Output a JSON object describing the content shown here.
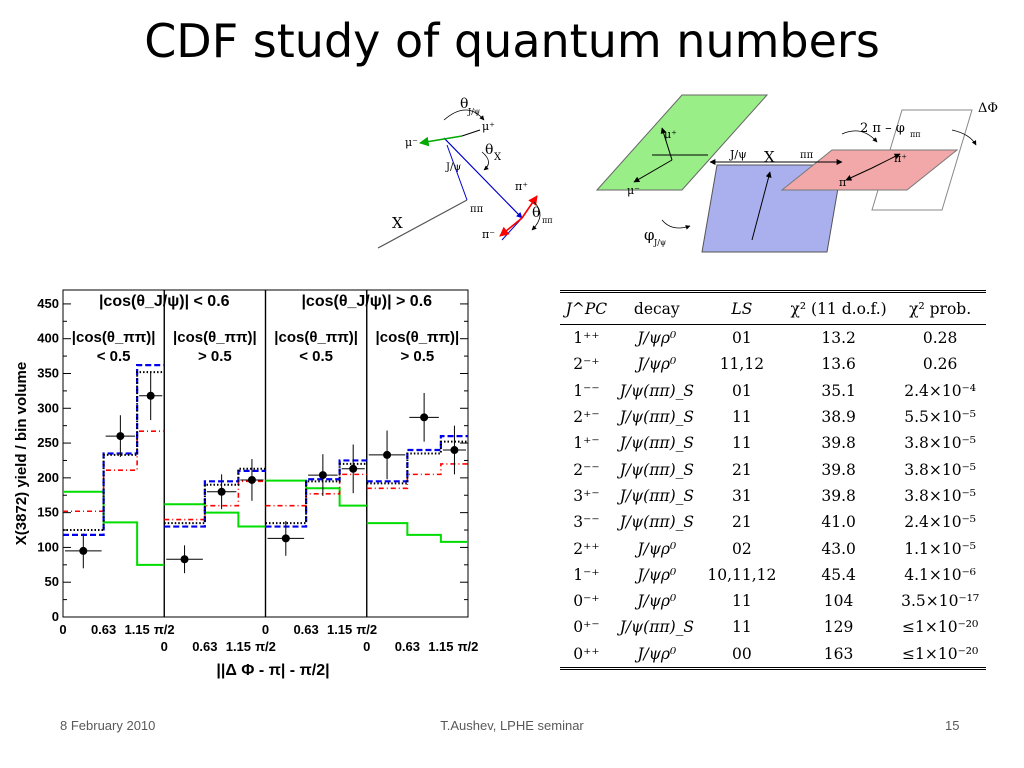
{
  "slide": {
    "title": "CDF study of quantum numbers",
    "footer_date": "8 February 2010",
    "footer_center": "T.Aushev, LPHE seminar",
    "page_number": "15"
  },
  "diagram_left": {
    "x_label": "X",
    "jpsi_label": "J/ψ",
    "mu_minus": "μ⁻",
    "mu_plus": "μ⁺",
    "theta_jpsi": "θ",
    "theta_jpsi_sub": "J/ψ",
    "theta_x": "θ",
    "theta_x_sub": "X",
    "pipi_label": "ππ",
    "pi_plus": "π⁺",
    "pi_minus": "π⁻",
    "theta_pipi": "θ",
    "theta_pipi_sub": "ππ"
  },
  "diagram_right": {
    "mu_plus": "μ⁺",
    "mu_minus": "μ⁻",
    "jpsi_label": "J/ψ",
    "x_label": "X",
    "pipi_label": "ππ",
    "pi_plus": "π⁺",
    "pi_minus": "π⁻",
    "two_pi_minus_phi": "2 π – φ",
    "two_pi_minus_phi_sub": "ππ",
    "delta_phi": "ΔΦ",
    "phi_jpsi": "φ",
    "phi_jpsi_sub": "J/ψ"
  },
  "chart_data": {
    "type": "histogram",
    "ylabel": "X(3872) yield / bin volume",
    "xlabel": "||Δ Φ - π| - π/2|",
    "ylim": [
      0,
      470
    ],
    "yticks": [
      0,
      50,
      100,
      150,
      200,
      250,
      300,
      350,
      400,
      450
    ],
    "x_ticks_top": [
      "0",
      "0.63",
      "1.15",
      "π/2",
      "0",
      "0.63",
      "1.15",
      "π/2"
    ],
    "x_ticks_bottom": [
      "0",
      "0.63",
      "1.15",
      "π/2",
      "0",
      "0.63",
      "1.15",
      "π/2"
    ],
    "bin_edges_per_panel": [
      0,
      0.63,
      1.15,
      1.5708
    ],
    "panel_headers": [
      "|cos(θ_J/ψ)| < 0.6",
      "|cos(θ_J/ψ)| > 0.6"
    ],
    "panels": [
      {
        "line1": "|cos(θ_ππ)|",
        "line2": "< 0.5"
      },
      {
        "line1": "|cos(θ_ππ)|",
        "line2": "> 0.5"
      },
      {
        "line1": "|cos(θ_ππ)|",
        "line2": "< 0.5"
      },
      {
        "line1": "|cos(θ_ππ)|",
        "line2": "> 0.5"
      }
    ],
    "data_points": [
      95,
      260,
      318,
      83,
      180,
      197,
      113,
      204,
      213,
      233,
      287,
      240
    ],
    "data_errors": [
      25,
      30,
      35,
      20,
      25,
      30,
      25,
      30,
      35,
      35,
      35,
      35
    ],
    "series": [
      {
        "style": "green-solid",
        "color": "#00dd00",
        "values": [
          180,
          136,
          75,
          162,
          150,
          130,
          196,
          185,
          160,
          135,
          118,
          108
        ]
      },
      {
        "style": "red-dashdot",
        "color": "#ff0000",
        "values": [
          152,
          211,
          267,
          140,
          160,
          195,
          160,
          177,
          205,
          185,
          205,
          220
        ]
      },
      {
        "style": "blue-dashed",
        "color": "#0000ee",
        "values": [
          118,
          235,
          362,
          130,
          195,
          210,
          130,
          198,
          225,
          195,
          240,
          260
        ]
      },
      {
        "style": "black-dotted",
        "color": "#000000",
        "values": [
          125,
          233,
          352,
          135,
          190,
          213,
          135,
          195,
          220,
          192,
          235,
          252
        ]
      }
    ]
  },
  "table": {
    "headers": [
      "J^PC",
      "decay",
      "LS",
      "χ² (11 d.o.f.)",
      "χ² prob."
    ],
    "rows": [
      [
        "1⁺⁺",
        "J/ψρ⁰",
        "01",
        "13.2",
        "0.28"
      ],
      [
        "2⁻⁺",
        "J/ψρ⁰",
        "11,12",
        "13.6",
        "0.26"
      ],
      [
        "1⁻⁻",
        "J/ψ(ππ)_S",
        "01",
        "35.1",
        "2.4×10⁻⁴"
      ],
      [
        "2⁺⁻",
        "J/ψ(ππ)_S",
        "11",
        "38.9",
        "5.5×10⁻⁵"
      ],
      [
        "1⁺⁻",
        "J/ψ(ππ)_S",
        "11",
        "39.8",
        "3.8×10⁻⁵"
      ],
      [
        "2⁻⁻",
        "J/ψ(ππ)_S",
        "21",
        "39.8",
        "3.8×10⁻⁵"
      ],
      [
        "3⁺⁻",
        "J/ψ(ππ)_S",
        "31",
        "39.8",
        "3.8×10⁻⁵"
      ],
      [
        "3⁻⁻",
        "J/ψ(ππ)_S",
        "21",
        "41.0",
        "2.4×10⁻⁵"
      ],
      [
        "2⁺⁺",
        "J/ψρ⁰",
        "02",
        "43.0",
        "1.1×10⁻⁵"
      ],
      [
        "1⁻⁺",
        "J/ψρ⁰",
        "10,11,12",
        "45.4",
        "4.1×10⁻⁶"
      ],
      [
        "0⁻⁺",
        "J/ψρ⁰",
        "11",
        "104",
        "3.5×10⁻¹⁷"
      ],
      [
        "0⁺⁻",
        "J/ψ(ππ)_S",
        "11",
        "129",
        "≤1×10⁻²⁰"
      ],
      [
        "0⁺⁺",
        "J/ψρ⁰",
        "00",
        "163",
        "≤1×10⁻²⁰"
      ]
    ]
  }
}
